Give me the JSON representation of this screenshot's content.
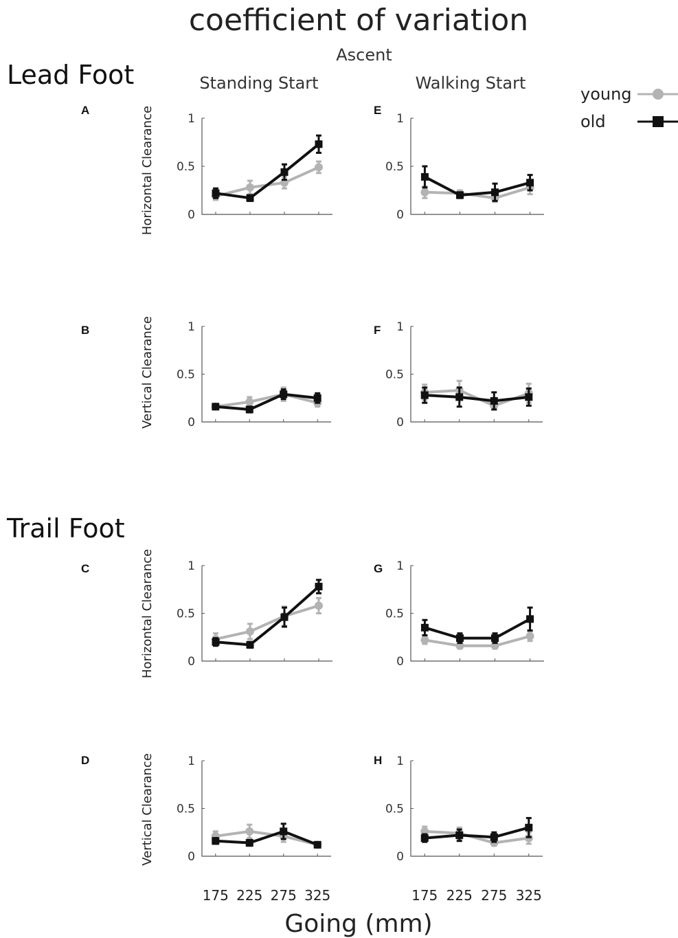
{
  "figure": {
    "title": "coefficient of variation",
    "subtitle": "Ascent",
    "sections": {
      "lead": "Lead Foot",
      "trail": "Trail Foot"
    },
    "columns": {
      "standing": "Standing Start",
      "walking": "Walking Start"
    },
    "ylabels": {
      "horizontal": "Horizontal Clearance",
      "vertical": "Vertical Clearance"
    },
    "xlabel": "Going (mm)",
    "xticks": [
      "175",
      "225",
      "275",
      "325"
    ],
    "yticks": [
      "0",
      "0.5",
      "1"
    ],
    "legend": {
      "young": "young",
      "old": "old",
      "placement": "top-right"
    }
  },
  "chart_data": [
    {
      "panel": "A",
      "type": "line",
      "ylim": [
        0,
        1
      ],
      "x": [
        175,
        225,
        275,
        325
      ],
      "series": [
        {
          "name": "young",
          "color": "#b3b3b3",
          "marker": "circle",
          "values": [
            0.19,
            0.28,
            0.33,
            0.49
          ],
          "errors": [
            0.04,
            0.07,
            0.06,
            0.06
          ]
        },
        {
          "name": "old",
          "color": "#111111",
          "marker": "square",
          "values": [
            0.22,
            0.17,
            0.44,
            0.73
          ],
          "errors": [
            0.05,
            0.03,
            0.08,
            0.09
          ]
        }
      ]
    },
    {
      "panel": "E",
      "type": "line",
      "ylim": [
        0,
        1
      ],
      "x": [
        175,
        225,
        275,
        325
      ],
      "series": [
        {
          "name": "young",
          "color": "#b3b3b3",
          "marker": "circle",
          "values": [
            0.23,
            0.22,
            0.17,
            0.28
          ],
          "errors": [
            0.06,
            0.03,
            0.04,
            0.07
          ]
        },
        {
          "name": "old",
          "color": "#111111",
          "marker": "square",
          "values": [
            0.39,
            0.2,
            0.23,
            0.33
          ],
          "errors": [
            0.11,
            0.03,
            0.09,
            0.08
          ]
        }
      ]
    },
    {
      "panel": "B",
      "type": "line",
      "ylim": [
        0,
        1
      ],
      "x": [
        175,
        225,
        275,
        325
      ],
      "series": [
        {
          "name": "young",
          "color": "#b3b3b3",
          "marker": "circle",
          "values": [
            0.16,
            0.21,
            0.29,
            0.2
          ],
          "errors": [
            0.02,
            0.05,
            0.07,
            0.04
          ]
        },
        {
          "name": "old",
          "color": "#111111",
          "marker": "square",
          "values": [
            0.16,
            0.13,
            0.29,
            0.25
          ],
          "errors": [
            0.02,
            0.03,
            0.05,
            0.05
          ]
        }
      ]
    },
    {
      "panel": "F",
      "type": "line",
      "ylim": [
        0,
        1
      ],
      "x": [
        175,
        225,
        275,
        325
      ],
      "series": [
        {
          "name": "young",
          "color": "#b3b3b3",
          "marker": "circle",
          "values": [
            0.31,
            0.33,
            0.17,
            0.3
          ],
          "errors": [
            0.08,
            0.1,
            0.04,
            0.1
          ]
        },
        {
          "name": "old",
          "color": "#111111",
          "marker": "square",
          "values": [
            0.28,
            0.26,
            0.22,
            0.26
          ],
          "errors": [
            0.08,
            0.1,
            0.09,
            0.09
          ]
        }
      ]
    },
    {
      "panel": "C",
      "type": "line",
      "ylim": [
        0,
        1
      ],
      "x": [
        175,
        225,
        275,
        325
      ],
      "series": [
        {
          "name": "young",
          "color": "#b3b3b3",
          "marker": "circle",
          "values": [
            0.23,
            0.31,
            0.47,
            0.58
          ],
          "errors": [
            0.06,
            0.08,
            0.1,
            0.08
          ]
        },
        {
          "name": "old",
          "color": "#111111",
          "marker": "square",
          "values": [
            0.2,
            0.17,
            0.46,
            0.78
          ],
          "errors": [
            0.04,
            0.03,
            0.1,
            0.07
          ]
        }
      ]
    },
    {
      "panel": "G",
      "type": "line",
      "ylim": [
        0,
        1
      ],
      "x": [
        175,
        225,
        275,
        325
      ],
      "series": [
        {
          "name": "young",
          "color": "#b3b3b3",
          "marker": "circle",
          "values": [
            0.22,
            0.16,
            0.16,
            0.26
          ],
          "errors": [
            0.04,
            0.03,
            0.03,
            0.05
          ]
        },
        {
          "name": "old",
          "color": "#111111",
          "marker": "square",
          "values": [
            0.35,
            0.24,
            0.24,
            0.44
          ],
          "errors": [
            0.08,
            0.05,
            0.05,
            0.12
          ]
        }
      ]
    },
    {
      "panel": "D",
      "type": "line",
      "ylim": [
        0,
        1
      ],
      "x": [
        175,
        225,
        275,
        325
      ],
      "series": [
        {
          "name": "young",
          "color": "#b3b3b3",
          "marker": "circle",
          "values": [
            0.21,
            0.26,
            0.21,
            0.12
          ],
          "errors": [
            0.05,
            0.07,
            0.06,
            0.02
          ]
        },
        {
          "name": "old",
          "color": "#111111",
          "marker": "square",
          "values": [
            0.16,
            0.14,
            0.26,
            0.12
          ],
          "errors": [
            0.03,
            0.03,
            0.08,
            0.02
          ]
        }
      ]
    },
    {
      "panel": "H",
      "type": "line",
      "ylim": [
        0,
        1
      ],
      "x": [
        175,
        225,
        275,
        325
      ],
      "series": [
        {
          "name": "young",
          "color": "#b3b3b3",
          "marker": "circle",
          "values": [
            0.26,
            0.24,
            0.14,
            0.19
          ],
          "errors": [
            0.05,
            0.06,
            0.03,
            0.06
          ]
        },
        {
          "name": "old",
          "color": "#111111",
          "marker": "square",
          "values": [
            0.19,
            0.22,
            0.2,
            0.3
          ],
          "errors": [
            0.04,
            0.06,
            0.05,
            0.1
          ]
        }
      ]
    }
  ]
}
